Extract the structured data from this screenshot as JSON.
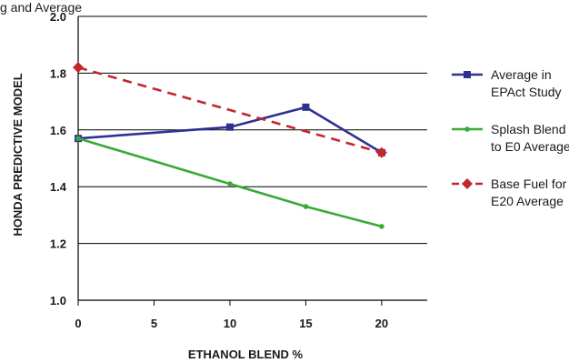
{
  "caption": "g and Average",
  "chart_data": {
    "type": "line",
    "xlabel": "ETHANOL BLEND %",
    "ylabel": "HONDA PREDICTIVE MODEL",
    "xlim": [
      0,
      23
    ],
    "ylim": [
      1.0,
      2.0
    ],
    "x_ticks": [
      "0",
      "5",
      "10",
      "15",
      "20"
    ],
    "y_ticks": [
      "1.0",
      "1.2",
      "1.4",
      "1.6",
      "1.8",
      "2.0"
    ],
    "grid": "horizontal",
    "legend_position": "right",
    "series": [
      {
        "name": "Average in EPAct Study",
        "legend_lines": [
          "Average in",
          "EPAct Study"
        ],
        "color": "#2e3192",
        "marker": "square",
        "dash": false,
        "points": [
          {
            "x": 0,
            "y": 1.57
          },
          {
            "x": 10,
            "y": 1.61
          },
          {
            "x": 15,
            "y": 1.68
          },
          {
            "x": 20,
            "y": 1.52
          }
        ]
      },
      {
        "name": "Splash Blend to E0 Average",
        "legend_lines": [
          "Splash Blend",
          "to E0 Average"
        ],
        "color": "#3aaa35",
        "marker": "circle",
        "dash": false,
        "points": [
          {
            "x": 0,
            "y": 1.57
          },
          {
            "x": 10,
            "y": 1.41
          },
          {
            "x": 15,
            "y": 1.33
          },
          {
            "x": 20,
            "y": 1.26
          }
        ]
      },
      {
        "name": "Base Fuel for E20 Average",
        "legend_lines": [
          "Base Fuel for",
          "E20 Average"
        ],
        "color": "#c1272d",
        "marker": "diamond",
        "dash": true,
        "points": [
          {
            "x": 0,
            "y": 1.82
          },
          {
            "x": 20,
            "y": 1.52
          }
        ]
      }
    ]
  }
}
